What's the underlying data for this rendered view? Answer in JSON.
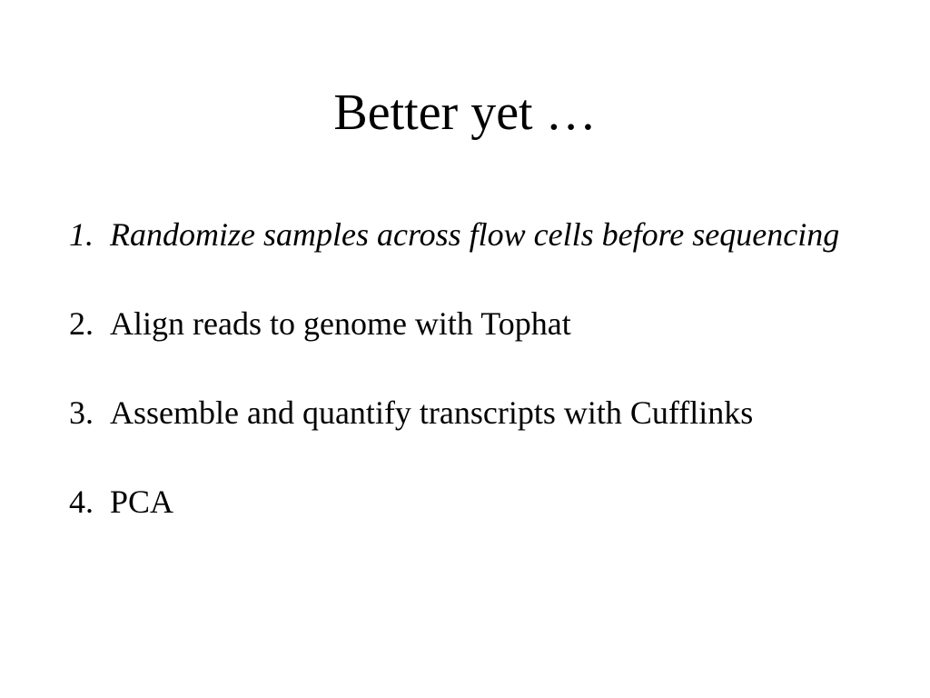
{
  "slide": {
    "title": "Better yet …",
    "items": [
      {
        "number": "1.",
        "text": "Randomize samples across flow cells before sequencing"
      },
      {
        "number": "2.",
        "text": "Align reads to genome with Tophat"
      },
      {
        "number": "3.",
        "text": "Assemble and quantify transcripts with Cufflinks"
      },
      {
        "number": "4.",
        "text": "PCA"
      }
    ]
  }
}
